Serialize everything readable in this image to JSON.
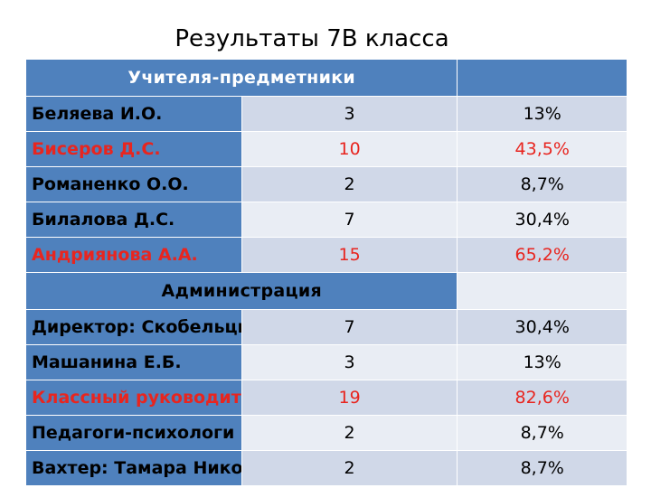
{
  "title": "Результаты 7В класса",
  "sections": [
    {
      "label": "Учителя-предметники",
      "rows": [
        {
          "name": "Беляева И.О.",
          "count": "3",
          "percent": "13%",
          "highlight": false
        },
        {
          "name": "Бисеров Д.С.",
          "count": "10",
          "percent": "43,5%",
          "highlight": true
        },
        {
          "name": "Романенко О.О.",
          "count": "2",
          "percent": "8,7%",
          "highlight": false
        },
        {
          "name": "Билалова Д.С.",
          "count": "7",
          "percent": "30,4%",
          "highlight": false
        },
        {
          "name": "Андриянова А.А.",
          "count": "15",
          "percent": "65,2%",
          "highlight": true
        }
      ]
    },
    {
      "label": "Администрация",
      "rows": [
        {
          "name": "Директор: Скобельцына Е.Г.",
          "count": "7",
          "percent": "30,4%",
          "highlight": false
        },
        {
          "name": "Машанина Е.Б.",
          "count": "3",
          "percent": "13%",
          "highlight": false
        },
        {
          "name": "Классный руководитель",
          "count": "19",
          "percent": "82,6%",
          "highlight": true
        },
        {
          "name": "Педагоги-психологи",
          "count": "2",
          "percent": "8,7%",
          "highlight": false
        },
        {
          "name": "Вахтер: Тамара Николаевна",
          "count": "2",
          "percent": "8,7%",
          "highlight": false
        }
      ]
    }
  ],
  "colors": {
    "header_blue": "#4f81bd",
    "cell_light_1": "#d0d8e8",
    "cell_light_2": "#e9edf4",
    "highlight_red": "#e8251f"
  }
}
